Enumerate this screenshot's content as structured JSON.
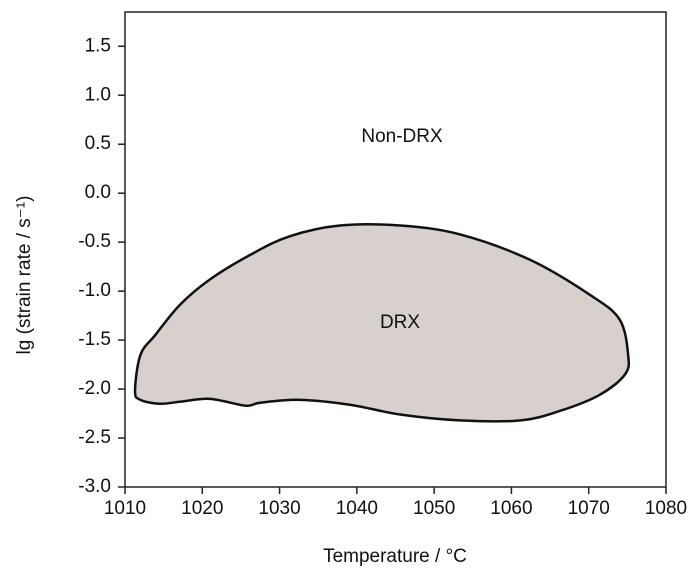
{
  "chart_data": {
    "type": "region",
    "x_label": "Temperature / °C",
    "y_label": "lg (strain rate / s⁻¹)",
    "annotation": "Non-DRX",
    "xlim": [
      1010,
      1080
    ],
    "xticks": [
      1010,
      1020,
      1030,
      1040,
      1050,
      1060,
      1070,
      1080
    ],
    "ylim": [
      -3.0,
      1.85
    ],
    "yticks": [
      1.5,
      {
        "value": 1,
        "label": "1.0"
      },
      0.5,
      {
        "value": 0,
        "label": "0.0"
      },
      -0.5,
      {
        "value": -1,
        "label": "-1.0"
      },
      -1.5,
      {
        "value": -2,
        "label": "-2.0"
      },
      -2.5,
      {
        "value": -3,
        "label": "-3.0"
      }
    ],
    "x": [
      1011.3,
      1012,
      1013.9,
      1017.1,
      1021,
      1026.2,
      1031.3,
      1037.8,
      1045.6,
      1053.3,
      1062.4,
      1070.2,
      1074,
      1075.1,
      1074.7,
      1071.4,
      1066.4,
      1061.2,
      1053.3,
      1045.6,
      1039.1,
      1032.6,
      1027.5,
      1025.6,
      1021,
      1017.1,
      1014.5,
      1012
    ],
    "series": [
      {
        "name": "DRX",
        "color": "#d8d0cd",
        "values": [
          -2.02,
          -1.65,
          -1.45,
          -1.14,
          -0.88,
          -0.63,
          -0.44,
          -0.33,
          -0.33,
          -0.42,
          -0.68,
          -1.04,
          -1.29,
          -1.65,
          -1.85,
          -2.06,
          -2.22,
          -2.32,
          -2.32,
          -2.26,
          -2.16,
          -2.11,
          -2.14,
          -2.17,
          -2.1,
          -2.13,
          -2.15,
          -2.11
        ]
      }
    ]
  }
}
